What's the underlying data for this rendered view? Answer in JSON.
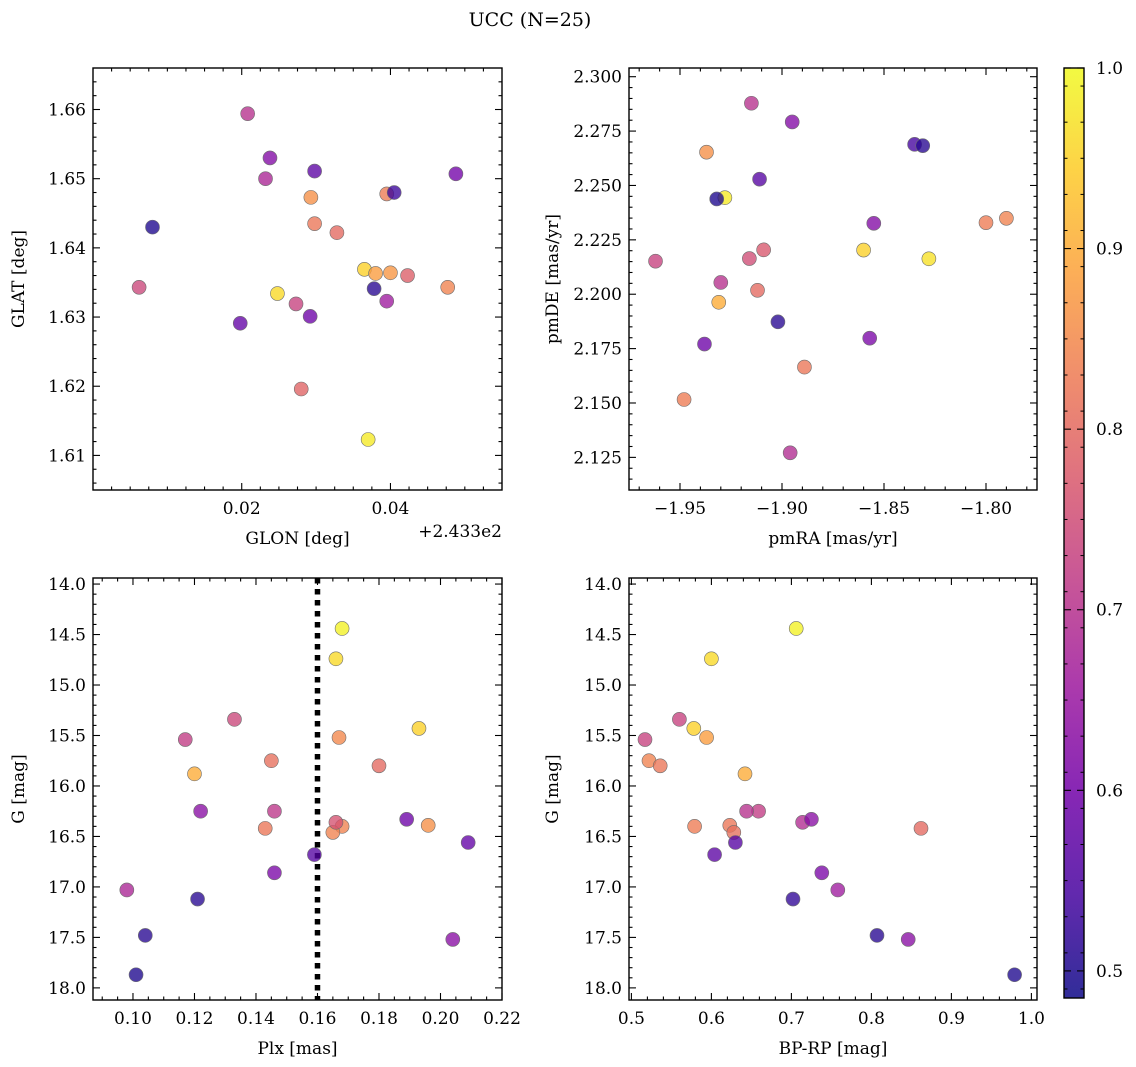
{
  "figure_title": "UCC (N=25)",
  "colorbar": {
    "ticks": [
      "0.5",
      "0.6",
      "0.7",
      "0.8",
      "0.9",
      "1.0"
    ],
    "range": [
      0.485,
      1.0
    ],
    "colormap": "plasma"
  },
  "colors": {
    "marker_edge": "#6e6e6e",
    "vline": "#000000",
    "plasma": [
      "#0d0887",
      "#46039f",
      "#7201a8",
      "#9c179e",
      "#bd3786",
      "#d8576b",
      "#ed7953",
      "#fb9f3a",
      "#fdca26",
      "#f0f921"
    ]
  },
  "chart_data": [
    {
      "type": "scatter",
      "id": "glon_glat",
      "xlabel": "GLON [deg]",
      "ylabel": "GLAT [deg]",
      "offset_label": "+2.433e2",
      "xlim": [
        0.0,
        0.055
      ],
      "ylim": [
        1.605,
        1.666
      ],
      "xticks": [
        {
          "v": 0.02,
          "t": "0.02"
        },
        {
          "v": 0.04,
          "t": "0.04"
        }
      ],
      "xminor": [
        0.0025,
        0.005,
        0.0075,
        0.01,
        0.0125,
        0.015,
        0.0175,
        0.0225,
        0.025,
        0.0275,
        0.03,
        0.0325,
        0.035,
        0.0375,
        0.0425,
        0.045,
        0.0475,
        0.05,
        0.0525
      ],
      "yticks": [
        {
          "v": 1.61,
          "t": "1.61"
        },
        {
          "v": 1.62,
          "t": "1.62"
        },
        {
          "v": 1.63,
          "t": "1.63"
        },
        {
          "v": 1.64,
          "t": "1.64"
        },
        {
          "v": 1.65,
          "t": "1.65"
        },
        {
          "v": 1.66,
          "t": "1.66"
        }
      ],
      "yminor": [
        1.606,
        1.608,
        1.612,
        1.614,
        1.616,
        1.618,
        1.622,
        1.624,
        1.626,
        1.628,
        1.632,
        1.634,
        1.636,
        1.638,
        1.642,
        1.644,
        1.646,
        1.648,
        1.652,
        1.654,
        1.656,
        1.658,
        1.662,
        1.664
      ],
      "points": [
        {
          "x": 0.037,
          "y": 1.6123,
          "c": 0.98
        },
        {
          "x": 0.0248,
          "y": 1.6334,
          "c": 0.96
        },
        {
          "x": 0.0365,
          "y": 1.6369,
          "c": 0.95
        },
        {
          "x": 0.038,
          "y": 1.6363,
          "c": 0.88
        },
        {
          "x": 0.04,
          "y": 1.6364,
          "c": 0.87
        },
        {
          "x": 0.0293,
          "y": 1.6473,
          "c": 0.86
        },
        {
          "x": 0.0477,
          "y": 1.6343,
          "c": 0.84
        },
        {
          "x": 0.0395,
          "y": 1.6478,
          "c": 0.83
        },
        {
          "x": 0.0298,
          "y": 1.6435,
          "c": 0.82
        },
        {
          "x": 0.0328,
          "y": 1.6422,
          "c": 0.8
        },
        {
          "x": 0.028,
          "y": 1.6196,
          "c": 0.79
        },
        {
          "x": 0.0423,
          "y": 1.636,
          "c": 0.78
        },
        {
          "x": 0.0062,
          "y": 1.6343,
          "c": 0.74
        },
        {
          "x": 0.0273,
          "y": 1.6319,
          "c": 0.73
        },
        {
          "x": 0.0208,
          "y": 1.6594,
          "c": 0.7
        },
        {
          "x": 0.0232,
          "y": 1.65,
          "c": 0.68
        },
        {
          "x": 0.0395,
          "y": 1.6323,
          "c": 0.66
        },
        {
          "x": 0.0238,
          "y": 1.653,
          "c": 0.62
        },
        {
          "x": 0.0488,
          "y": 1.6507,
          "c": 0.6
        },
        {
          "x": 0.0292,
          "y": 1.6301,
          "c": 0.59
        },
        {
          "x": 0.0198,
          "y": 1.6291,
          "c": 0.58
        },
        {
          "x": 0.0298,
          "y": 1.6511,
          "c": 0.57
        },
        {
          "x": 0.0405,
          "y": 1.648,
          "c": 0.53
        },
        {
          "x": 0.0378,
          "y": 1.6341,
          "c": 0.51
        },
        {
          "x": 0.008,
          "y": 1.643,
          "c": 0.5
        }
      ]
    },
    {
      "type": "scatter",
      "id": "pm",
      "xlabel": "pmRA [mas/yr]",
      "ylabel": "pmDE [mas/yr]",
      "xlim": [
        -1.975,
        -1.775
      ],
      "ylim": [
        2.11,
        2.304
      ],
      "xticks": [
        {
          "v": -1.95,
          "t": "−1.95"
        },
        {
          "v": -1.9,
          "t": "−1.90"
        },
        {
          "v": -1.85,
          "t": "−1.85"
        },
        {
          "v": -1.8,
          "t": "−1.80"
        }
      ],
      "xminor": [
        -1.97,
        -1.96,
        -1.94,
        -1.93,
        -1.92,
        -1.91,
        -1.89,
        -1.88,
        -1.87,
        -1.86,
        -1.84,
        -1.83,
        -1.82,
        -1.81,
        -1.79,
        -1.78
      ],
      "yticks": [
        {
          "v": 2.125,
          "t": "2.125"
        },
        {
          "v": 2.15,
          "t": "2.150"
        },
        {
          "v": 2.175,
          "t": "2.175"
        },
        {
          "v": 2.2,
          "t": "2.200"
        },
        {
          "v": 2.225,
          "t": "2.225"
        },
        {
          "v": 2.25,
          "t": "2.250"
        },
        {
          "v": 2.275,
          "t": "2.275"
        },
        {
          "v": 2.3,
          "t": "2.300"
        }
      ],
      "yminor": [
        2.115,
        2.12,
        2.13,
        2.135,
        2.14,
        2.145,
        2.155,
        2.16,
        2.165,
        2.17,
        2.18,
        2.185,
        2.19,
        2.195,
        2.205,
        2.21,
        2.215,
        2.22,
        2.23,
        2.235,
        2.24,
        2.245,
        2.255,
        2.26,
        2.265,
        2.27,
        2.28,
        2.285,
        2.29,
        2.295
      ],
      "points": [
        {
          "x": -1.928,
          "y": 2.2444,
          "c": 0.98
        },
        {
          "x": -1.828,
          "y": 2.2163,
          "c": 0.97
        },
        {
          "x": -1.86,
          "y": 2.2203,
          "c": 0.95
        },
        {
          "x": -1.931,
          "y": 2.1963,
          "c": 0.9
        },
        {
          "x": -1.937,
          "y": 2.2653,
          "c": 0.86
        },
        {
          "x": -1.79,
          "y": 2.2349,
          "c": 0.84
        },
        {
          "x": -1.8,
          "y": 2.2329,
          "c": 0.83
        },
        {
          "x": -1.948,
          "y": 2.1516,
          "c": 0.83
        },
        {
          "x": -1.889,
          "y": 2.1665,
          "c": 0.82
        },
        {
          "x": -1.912,
          "y": 2.2018,
          "c": 0.8
        },
        {
          "x": -1.909,
          "y": 2.2204,
          "c": 0.77
        },
        {
          "x": -1.916,
          "y": 2.2164,
          "c": 0.75
        },
        {
          "x": -1.962,
          "y": 2.2152,
          "c": 0.73
        },
        {
          "x": -1.915,
          "y": 2.2878,
          "c": 0.7
        },
        {
          "x": -1.93,
          "y": 2.2054,
          "c": 0.7
        },
        {
          "x": -1.896,
          "y": 2.1271,
          "c": 0.69
        },
        {
          "x": -1.895,
          "y": 2.2792,
          "c": 0.62
        },
        {
          "x": -1.855,
          "y": 2.2326,
          "c": 0.62
        },
        {
          "x": -1.857,
          "y": 2.1798,
          "c": 0.61
        },
        {
          "x": -1.938,
          "y": 2.1771,
          "c": 0.59
        },
        {
          "x": -1.911,
          "y": 2.2529,
          "c": 0.56
        },
        {
          "x": -1.835,
          "y": 2.2689,
          "c": 0.54
        },
        {
          "x": -1.831,
          "y": 2.2683,
          "c": 0.51
        },
        {
          "x": -1.902,
          "y": 2.1873,
          "c": 0.51
        },
        {
          "x": -1.932,
          "y": 2.2438,
          "c": 0.5
        }
      ]
    },
    {
      "type": "scatter",
      "id": "plx_g",
      "xlabel": "Plx [mas]",
      "ylabel": "G [mag]",
      "xlim": [
        0.087,
        0.22
      ],
      "ylim": [
        18.12,
        13.94
      ],
      "vline": 0.16,
      "xticks": [
        {
          "v": 0.1,
          "t": "0.10"
        },
        {
          "v": 0.12,
          "t": "0.12"
        },
        {
          "v": 0.14,
          "t": "0.14"
        },
        {
          "v": 0.16,
          "t": "0.16"
        },
        {
          "v": 0.18,
          "t": "0.18"
        },
        {
          "v": 0.2,
          "t": "0.20"
        },
        {
          "v": 0.22,
          "t": "0.22"
        }
      ],
      "xminor": [
        0.09,
        0.095,
        0.105,
        0.11,
        0.115,
        0.125,
        0.13,
        0.135,
        0.145,
        0.15,
        0.155,
        0.165,
        0.17,
        0.175,
        0.185,
        0.19,
        0.195,
        0.205,
        0.21,
        0.215
      ],
      "yticks": [
        {
          "v": 14.0,
          "t": "14.0"
        },
        {
          "v": 14.5,
          "t": "14.5"
        },
        {
          "v": 15.0,
          "t": "15.0"
        },
        {
          "v": 15.5,
          "t": "15.5"
        },
        {
          "v": 16.0,
          "t": "16.0"
        },
        {
          "v": 16.5,
          "t": "16.5"
        },
        {
          "v": 17.0,
          "t": "17.0"
        },
        {
          "v": 17.5,
          "t": "17.5"
        },
        {
          "v": 18.0,
          "t": "18.0"
        }
      ],
      "yminor": [
        14.1,
        14.2,
        14.3,
        14.4,
        14.6,
        14.7,
        14.8,
        14.9,
        15.1,
        15.2,
        15.3,
        15.4,
        15.6,
        15.7,
        15.8,
        15.9,
        16.1,
        16.2,
        16.3,
        16.4,
        16.6,
        16.7,
        16.8,
        16.9,
        17.1,
        17.2,
        17.3,
        17.4,
        17.6,
        17.7,
        17.8,
        17.9
      ],
      "points": [
        {
          "x": 0.168,
          "y": 14.44,
          "c": 0.99
        },
        {
          "x": 0.166,
          "y": 14.74,
          "c": 0.96
        },
        {
          "x": 0.193,
          "y": 15.43,
          "c": 0.95
        },
        {
          "x": 0.12,
          "y": 15.88,
          "c": 0.9
        },
        {
          "x": 0.196,
          "y": 16.39,
          "c": 0.86
        },
        {
          "x": 0.167,
          "y": 15.52,
          "c": 0.85
        },
        {
          "x": 0.168,
          "y": 16.4,
          "c": 0.84
        },
        {
          "x": 0.165,
          "y": 16.46,
          "c": 0.84
        },
        {
          "x": 0.143,
          "y": 16.42,
          "c": 0.82
        },
        {
          "x": 0.145,
          "y": 15.75,
          "c": 0.81
        },
        {
          "x": 0.18,
          "y": 15.8,
          "c": 0.8
        },
        {
          "x": 0.166,
          "y": 16.36,
          "c": 0.76
        },
        {
          "x": 0.133,
          "y": 15.34,
          "c": 0.74
        },
        {
          "x": 0.117,
          "y": 15.54,
          "c": 0.72
        },
        {
          "x": 0.146,
          "y": 16.25,
          "c": 0.71
        },
        {
          "x": 0.098,
          "y": 17.03,
          "c": 0.68
        },
        {
          "x": 0.122,
          "y": 16.25,
          "c": 0.63
        },
        {
          "x": 0.204,
          "y": 17.52,
          "c": 0.63
        },
        {
          "x": 0.146,
          "y": 16.86,
          "c": 0.61
        },
        {
          "x": 0.189,
          "y": 16.33,
          "c": 0.59
        },
        {
          "x": 0.209,
          "y": 16.56,
          "c": 0.58
        },
        {
          "x": 0.159,
          "y": 16.68,
          "c": 0.56
        },
        {
          "x": 0.121,
          "y": 17.12,
          "c": 0.51
        },
        {
          "x": 0.104,
          "y": 17.48,
          "c": 0.51
        },
        {
          "x": 0.101,
          "y": 17.87,
          "c": 0.5
        }
      ]
    },
    {
      "type": "scatter",
      "id": "cmd",
      "xlabel": "BP-RP [mag]",
      "ylabel": "G [mag]",
      "xlim": [
        0.497,
        1.007
      ],
      "ylim": [
        18.12,
        13.94
      ],
      "xticks": [
        {
          "v": 0.5,
          "t": "0.5"
        },
        {
          "v": 0.6,
          "t": "0.6"
        },
        {
          "v": 0.7,
          "t": "0.7"
        },
        {
          "v": 0.8,
          "t": "0.8"
        },
        {
          "v": 0.9,
          "t": "0.9"
        },
        {
          "v": 1.0,
          "t": "1.0"
        }
      ],
      "xminor": [
        0.52,
        0.54,
        0.56,
        0.58,
        0.62,
        0.64,
        0.66,
        0.68,
        0.72,
        0.74,
        0.76,
        0.78,
        0.82,
        0.84,
        0.86,
        0.88,
        0.92,
        0.94,
        0.96,
        0.98
      ],
      "yticks": [
        {
          "v": 14.0,
          "t": "14.0"
        },
        {
          "v": 14.5,
          "t": "14.5"
        },
        {
          "v": 15.0,
          "t": "15.0"
        },
        {
          "v": 15.5,
          "t": "15.5"
        },
        {
          "v": 16.0,
          "t": "16.0"
        },
        {
          "v": 16.5,
          "t": "16.5"
        },
        {
          "v": 17.0,
          "t": "17.0"
        },
        {
          "v": 17.5,
          "t": "17.5"
        },
        {
          "v": 18.0,
          "t": "18.0"
        }
      ],
      "yminor": [
        14.1,
        14.2,
        14.3,
        14.4,
        14.6,
        14.7,
        14.8,
        14.9,
        15.1,
        15.2,
        15.3,
        15.4,
        15.6,
        15.7,
        15.8,
        15.9,
        16.1,
        16.2,
        16.3,
        16.4,
        16.6,
        16.7,
        16.8,
        16.9,
        17.1,
        17.2,
        17.3,
        17.4,
        17.6,
        17.7,
        17.8,
        17.9
      ],
      "points": [
        {
          "x": 0.706,
          "y": 14.44,
          "c": 0.99
        },
        {
          "x": 0.6,
          "y": 14.74,
          "c": 0.96
        },
        {
          "x": 0.578,
          "y": 15.43,
          "c": 0.95
        },
        {
          "x": 0.594,
          "y": 15.52,
          "c": 0.88
        },
        {
          "x": 0.642,
          "y": 15.88,
          "c": 0.9
        },
        {
          "x": 0.522,
          "y": 15.75,
          "c": 0.84
        },
        {
          "x": 0.536,
          "y": 15.8,
          "c": 0.82
        },
        {
          "x": 0.579,
          "y": 16.4,
          "c": 0.83
        },
        {
          "x": 0.623,
          "y": 16.39,
          "c": 0.82
        },
        {
          "x": 0.628,
          "y": 16.46,
          "c": 0.81
        },
        {
          "x": 0.862,
          "y": 16.42,
          "c": 0.8
        },
        {
          "x": 0.517,
          "y": 15.54,
          "c": 0.73
        },
        {
          "x": 0.56,
          "y": 15.34,
          "c": 0.73
        },
        {
          "x": 0.659,
          "y": 16.25,
          "c": 0.72
        },
        {
          "x": 0.644,
          "y": 16.25,
          "c": 0.7
        },
        {
          "x": 0.714,
          "y": 16.36,
          "c": 0.69
        },
        {
          "x": 0.758,
          "y": 17.03,
          "c": 0.66
        },
        {
          "x": 0.725,
          "y": 16.33,
          "c": 0.63
        },
        {
          "x": 0.846,
          "y": 17.52,
          "c": 0.63
        },
        {
          "x": 0.738,
          "y": 16.86,
          "c": 0.61
        },
        {
          "x": 0.63,
          "y": 16.56,
          "c": 0.56
        },
        {
          "x": 0.604,
          "y": 16.68,
          "c": 0.57
        },
        {
          "x": 0.702,
          "y": 17.12,
          "c": 0.52
        },
        {
          "x": 0.807,
          "y": 17.48,
          "c": 0.51
        },
        {
          "x": 0.979,
          "y": 17.87,
          "c": 0.5
        }
      ]
    }
  ]
}
